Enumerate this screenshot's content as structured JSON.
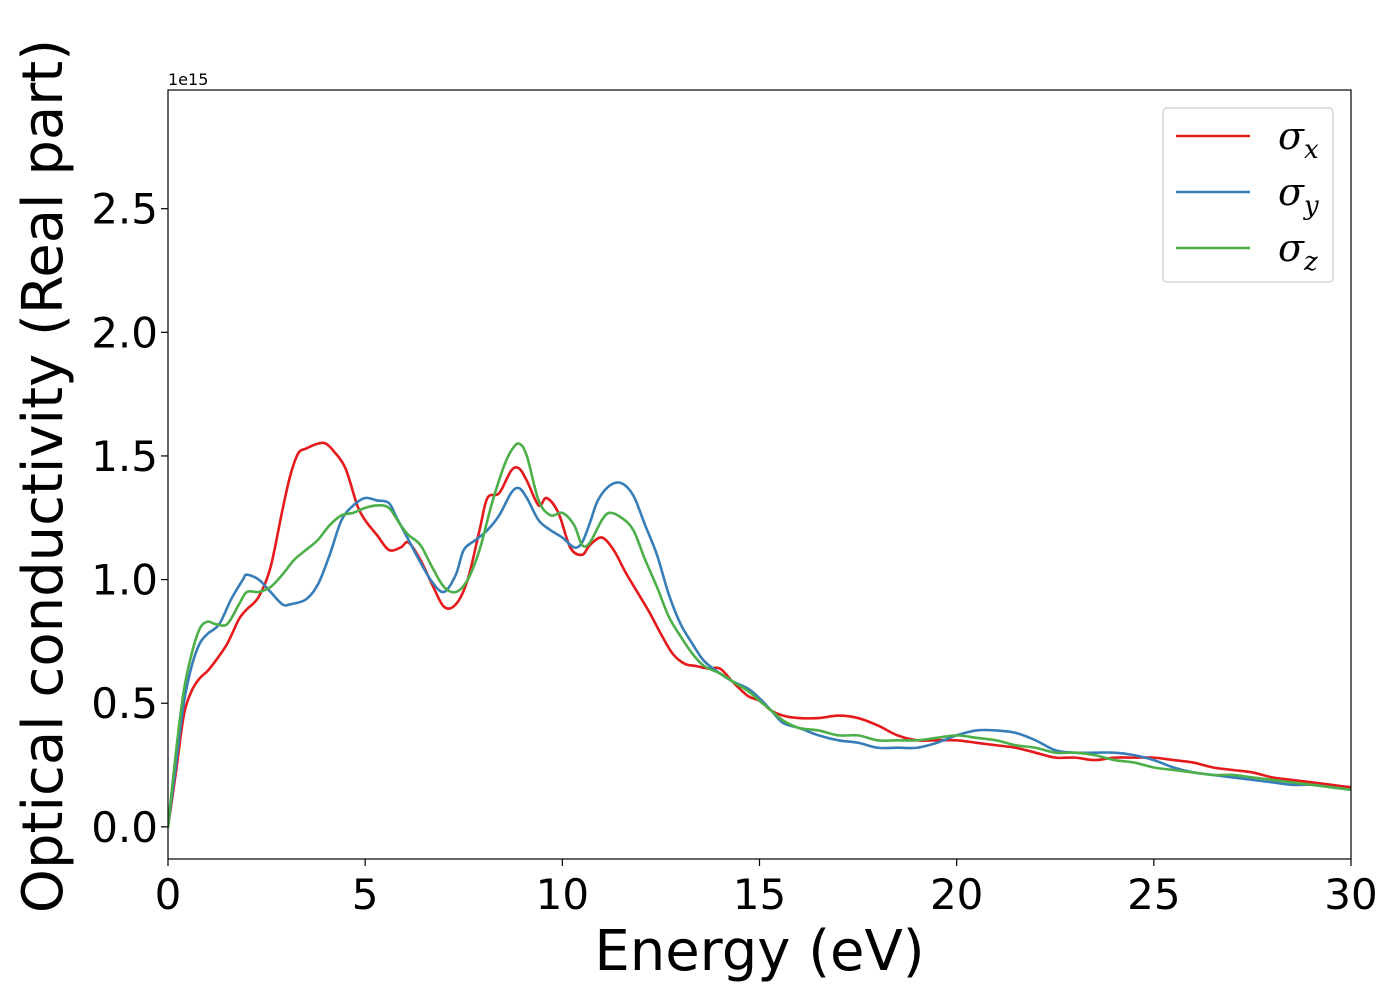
{
  "chart_data": {
    "type": "line",
    "xlabel": "Energy (eV)",
    "ylabel": "Optical conductivity (Real part)",
    "y_offset_text": "1e15",
    "xlim": [
      0,
      30
    ],
    "ylim": [
      -0.13,
      2.98
    ],
    "y_scale": 1000000000000000.0,
    "xticks": [
      0,
      5,
      10,
      15,
      20,
      25,
      30
    ],
    "xtick_labels": [
      "0",
      "5",
      "10",
      "15",
      "20",
      "25",
      "30"
    ],
    "yticks": [
      0.0,
      0.5,
      1.0,
      1.5,
      2.0,
      2.5
    ],
    "ytick_labels": [
      "0.0",
      "0.5",
      "1.0",
      "1.5",
      "2.0",
      "2.5"
    ],
    "grid": false,
    "legend_position": "top-right",
    "series": [
      {
        "name_base": "σ",
        "name_sub": "x",
        "color": "#e41a1c",
        "x": [
          0,
          0.2,
          0.4,
          0.6,
          0.8,
          1.0,
          1.2,
          1.5,
          1.8,
          2.0,
          2.3,
          2.6,
          2.9,
          3.1,
          3.3,
          3.5,
          3.8,
          4.0,
          4.2,
          4.5,
          4.8,
          5.0,
          5.3,
          5.6,
          5.9,
          6.1,
          6.4,
          6.7,
          7.0,
          7.3,
          7.6,
          7.9,
          8.1,
          8.4,
          8.7,
          8.9,
          9.1,
          9.4,
          9.6,
          9.9,
          10.2,
          10.5,
          10.7,
          11.0,
          11.3,
          11.6,
          11.9,
          12.2,
          12.5,
          12.8,
          13.1,
          13.4,
          13.7,
          14.0,
          14.3,
          14.7,
          15.0,
          15.3,
          15.6,
          16.0,
          16.5,
          17.0,
          17.5,
          18.0,
          18.5,
          19.0,
          19.5,
          20.0,
          20.5,
          21.0,
          21.5,
          22.0,
          22.5,
          23.0,
          23.5,
          24.0,
          24.5,
          25.0,
          25.5,
          26.0,
          26.5,
          27.0,
          27.5,
          28.0,
          28.5,
          29.0,
          29.5,
          30.0
        ],
        "y": [
          0.0,
          0.22,
          0.45,
          0.55,
          0.6,
          0.63,
          0.67,
          0.74,
          0.84,
          0.88,
          0.93,
          1.05,
          1.28,
          1.42,
          1.51,
          1.53,
          1.55,
          1.55,
          1.52,
          1.45,
          1.3,
          1.24,
          1.18,
          1.12,
          1.13,
          1.15,
          1.08,
          0.98,
          0.89,
          0.9,
          1.0,
          1.2,
          1.33,
          1.35,
          1.44,
          1.45,
          1.4,
          1.3,
          1.33,
          1.27,
          1.13,
          1.1,
          1.14,
          1.17,
          1.12,
          1.03,
          0.95,
          0.87,
          0.78,
          0.7,
          0.66,
          0.65,
          0.64,
          0.64,
          0.59,
          0.53,
          0.51,
          0.47,
          0.45,
          0.44,
          0.44,
          0.45,
          0.44,
          0.41,
          0.37,
          0.35,
          0.35,
          0.35,
          0.34,
          0.33,
          0.32,
          0.3,
          0.28,
          0.28,
          0.27,
          0.28,
          0.28,
          0.28,
          0.27,
          0.26,
          0.24,
          0.23,
          0.22,
          0.2,
          0.19,
          0.18,
          0.17,
          0.16
        ]
      },
      {
        "name_base": "σ",
        "name_sub": "y",
        "color": "#377eb8",
        "x": [
          0,
          0.2,
          0.4,
          0.6,
          0.8,
          1.0,
          1.3,
          1.6,
          1.9,
          2.0,
          2.3,
          2.6,
          2.9,
          3.1,
          3.5,
          3.8,
          4.1,
          4.4,
          4.7,
          5.0,
          5.3,
          5.6,
          5.8,
          6.1,
          6.4,
          6.7,
          7.0,
          7.3,
          7.5,
          7.8,
          8.1,
          8.4,
          8.7,
          8.9,
          9.1,
          9.4,
          9.7,
          10.0,
          10.3,
          10.5,
          10.7,
          10.9,
          11.2,
          11.5,
          11.8,
          12.1,
          12.4,
          12.7,
          13.0,
          13.3,
          13.6,
          14.0,
          14.3,
          14.7,
          15.0,
          15.3,
          15.6,
          16.0,
          16.5,
          17.0,
          17.5,
          18.0,
          18.5,
          19.0,
          19.5,
          20.0,
          20.5,
          21.0,
          21.5,
          22.0,
          22.5,
          23.0,
          23.5,
          24.0,
          24.5,
          25.0,
          25.5,
          26.0,
          26.5,
          27.0,
          27.5,
          28.0,
          28.5,
          29.0,
          29.5,
          30.0
        ],
        "y": [
          0.0,
          0.25,
          0.5,
          0.65,
          0.74,
          0.78,
          0.82,
          0.92,
          1.0,
          1.02,
          1.0,
          0.95,
          0.9,
          0.9,
          0.92,
          0.98,
          1.1,
          1.24,
          1.3,
          1.33,
          1.32,
          1.31,
          1.25,
          1.16,
          1.07,
          0.99,
          0.95,
          1.02,
          1.12,
          1.16,
          1.2,
          1.26,
          1.35,
          1.37,
          1.33,
          1.24,
          1.2,
          1.17,
          1.13,
          1.15,
          1.23,
          1.32,
          1.38,
          1.39,
          1.34,
          1.22,
          1.1,
          0.94,
          0.82,
          0.74,
          0.67,
          0.62,
          0.59,
          0.56,
          0.52,
          0.47,
          0.42,
          0.4,
          0.37,
          0.35,
          0.34,
          0.32,
          0.32,
          0.32,
          0.34,
          0.37,
          0.39,
          0.39,
          0.38,
          0.35,
          0.31,
          0.3,
          0.3,
          0.3,
          0.29,
          0.27,
          0.24,
          0.22,
          0.21,
          0.2,
          0.19,
          0.18,
          0.17,
          0.17,
          0.16,
          0.15
        ]
      },
      {
        "name_base": "σ",
        "name_sub": "z",
        "color": "#4daf4a",
        "x": [
          0,
          0.2,
          0.4,
          0.6,
          0.8,
          1.0,
          1.2,
          1.5,
          1.8,
          2.0,
          2.3,
          2.6,
          2.9,
          3.2,
          3.5,
          3.8,
          4.1,
          4.4,
          4.7,
          5.0,
          5.3,
          5.6,
          5.9,
          6.1,
          6.4,
          6.7,
          7.0,
          7.3,
          7.6,
          7.9,
          8.2,
          8.5,
          8.7,
          8.9,
          9.1,
          9.4,
          9.7,
          10.0,
          10.3,
          10.5,
          10.7,
          11.0,
          11.2,
          11.5,
          11.8,
          12.1,
          12.4,
          12.7,
          13.0,
          13.3,
          13.6,
          14.0,
          14.3,
          14.7,
          15.0,
          15.3,
          15.6,
          16.0,
          16.5,
          17.0,
          17.5,
          18.0,
          18.5,
          19.0,
          19.5,
          20.0,
          20.5,
          21.0,
          21.5,
          22.0,
          22.5,
          23.0,
          23.5,
          24.0,
          24.5,
          25.0,
          25.5,
          26.0,
          26.5,
          27.0,
          27.5,
          28.0,
          28.5,
          29.0,
          29.5,
          30.0
        ],
        "y": [
          0.0,
          0.3,
          0.55,
          0.7,
          0.8,
          0.83,
          0.82,
          0.82,
          0.9,
          0.95,
          0.95,
          0.97,
          1.02,
          1.08,
          1.12,
          1.16,
          1.22,
          1.26,
          1.27,
          1.29,
          1.3,
          1.29,
          1.22,
          1.18,
          1.14,
          1.05,
          0.97,
          0.95,
          1.0,
          1.12,
          1.3,
          1.45,
          1.52,
          1.55,
          1.5,
          1.32,
          1.26,
          1.27,
          1.22,
          1.14,
          1.15,
          1.24,
          1.27,
          1.25,
          1.2,
          1.08,
          0.97,
          0.85,
          0.77,
          0.7,
          0.65,
          0.62,
          0.59,
          0.55,
          0.51,
          0.47,
          0.43,
          0.4,
          0.39,
          0.37,
          0.37,
          0.35,
          0.35,
          0.35,
          0.36,
          0.37,
          0.36,
          0.35,
          0.33,
          0.32,
          0.3,
          0.3,
          0.29,
          0.27,
          0.26,
          0.24,
          0.23,
          0.22,
          0.21,
          0.21,
          0.2,
          0.19,
          0.18,
          0.17,
          0.16,
          0.15
        ]
      }
    ]
  }
}
